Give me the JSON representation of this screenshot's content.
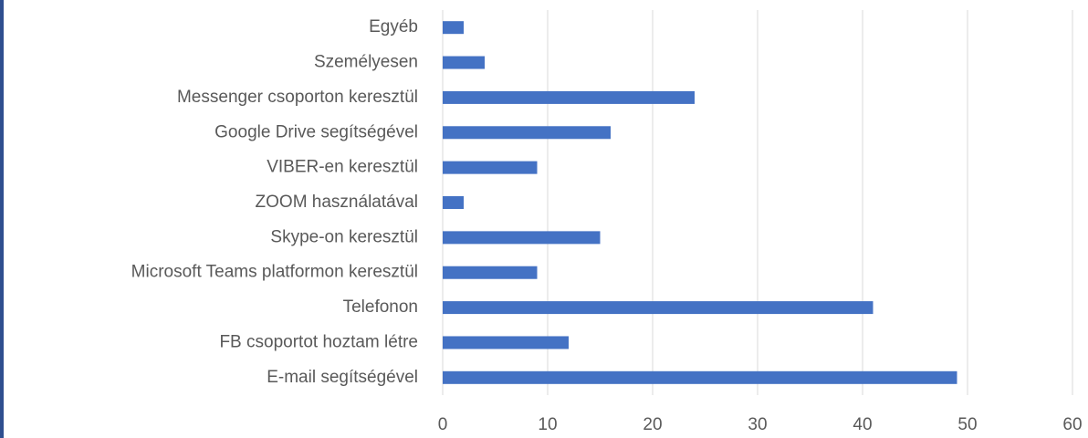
{
  "chart_data": {
    "type": "barh",
    "categories": [
      "E-mail segítségével",
      "FB csoportot hoztam létre",
      "Telefonon",
      "Microsoft Teams platformon keresztül",
      "Skype-on keresztül",
      "ZOOM használatával",
      "VIBER-en keresztül",
      "Google Drive segítségével",
      "Messenger csoporton keresztül",
      "Személyesen",
      "Egyéb"
    ],
    "values": [
      49,
      12,
      41,
      9,
      15,
      2,
      9,
      16,
      24,
      4,
      2
    ],
    "color": "#4472c4",
    "xlim": [
      0,
      60
    ],
    "xticks": [
      0,
      10,
      20,
      30,
      40,
      50,
      60
    ],
    "grid": true
  }
}
